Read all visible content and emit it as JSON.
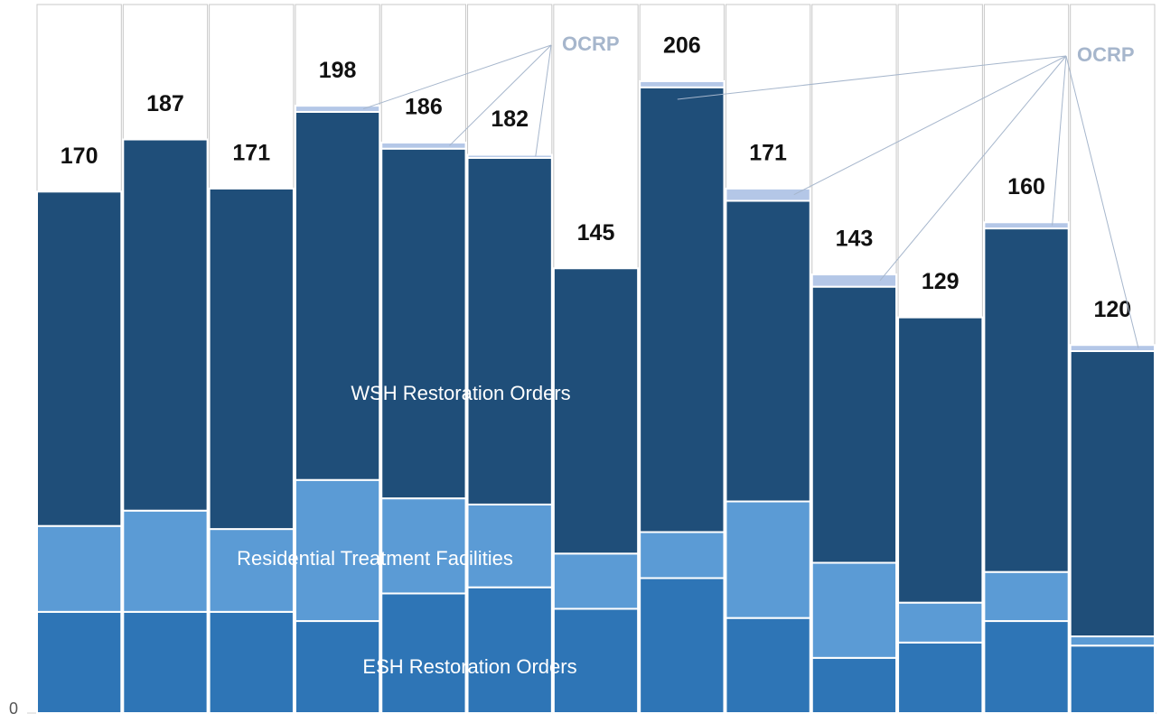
{
  "chart_data": {
    "type": "stacked_bar",
    "categories": [
      null,
      null,
      null,
      null,
      null,
      null,
      null,
      null,
      null,
      null,
      null,
      null,
      null
    ],
    "series": [
      {
        "name": "ESH Restoration Orders",
        "color": "#2e75b6",
        "values": [
          33,
          33,
          33,
          30,
          39,
          41,
          34,
          44,
          31,
          18,
          23,
          30,
          22
        ]
      },
      {
        "name": "Residential Treatment Facilities",
        "color": "#5b9bd5",
        "values": [
          28,
          33,
          27,
          46,
          31,
          27,
          18,
          15,
          38,
          31,
          13,
          16,
          3
        ]
      },
      {
        "name": "WSH Restoration Orders",
        "color": "#1f4e79",
        "values": [
          109,
          121,
          111,
          120,
          114,
          113,
          93,
          145,
          98,
          90,
          93,
          112,
          93
        ]
      },
      {
        "name": "OCRP",
        "color": "#b4c7e7",
        "values": [
          0,
          0,
          0,
          2,
          2,
          1,
          0,
          2,
          4,
          4,
          0,
          2,
          2
        ]
      }
    ],
    "totals": [
      170,
      187,
      171,
      198,
      186,
      182,
      145,
      206,
      171,
      143,
      129,
      160,
      120
    ],
    "ylim": [
      0,
      231
    ],
    "yticks": [
      0
    ]
  }
}
